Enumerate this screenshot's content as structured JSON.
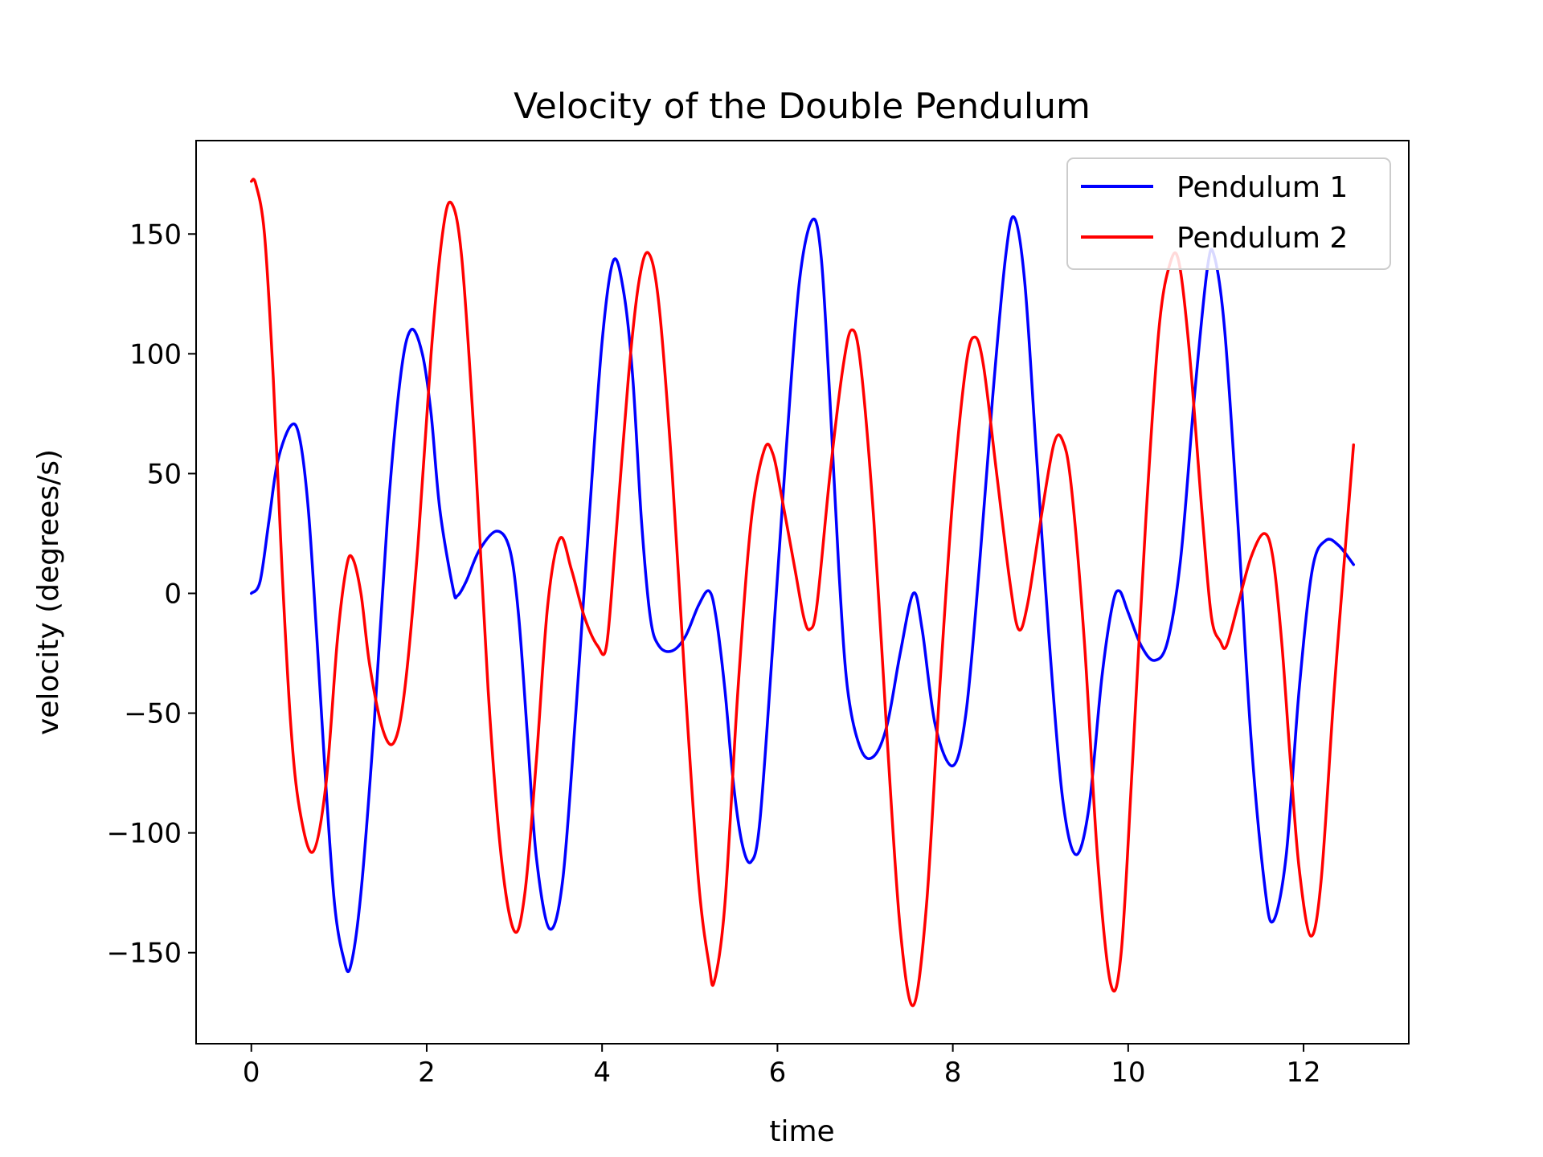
{
  "chart_data": {
    "type": "line",
    "title": "Velocity of the Double Pendulum",
    "xlabel": "time",
    "ylabel": "velocity (degrees/s)",
    "xlim": [
      -0.63,
      13.2
    ],
    "ylim": [
      -188,
      189
    ],
    "xticks": [
      0,
      2,
      4,
      6,
      8,
      10,
      12
    ],
    "yticks": [
      150,
      100,
      50,
      0,
      -50,
      -100,
      -150
    ],
    "xtick_labels": [
      "0",
      "2",
      "4",
      "6",
      "8",
      "10",
      "12"
    ],
    "ytick_labels": [
      "150",
      "100",
      "50",
      "0",
      "−50",
      "−100",
      "−150"
    ],
    "grid": false,
    "legend_position": "top-right",
    "series": [
      {
        "name": "Pendulum 1",
        "color": "#0000ff",
        "points": [
          [
            0,
            0
          ],
          [
            0.1,
            5
          ],
          [
            0.2,
            30
          ],
          [
            0.3,
            55
          ],
          [
            0.45,
            70
          ],
          [
            0.55,
            65
          ],
          [
            0.65,
            35
          ],
          [
            0.75,
            -20
          ],
          [
            0.85,
            -80
          ],
          [
            0.95,
            -130
          ],
          [
            1.05,
            -152
          ],
          [
            1.13,
            -156
          ],
          [
            1.25,
            -125
          ],
          [
            1.4,
            -55
          ],
          [
            1.55,
            30
          ],
          [
            1.7,
            90
          ],
          [
            1.82,
            110
          ],
          [
            1.95,
            100
          ],
          [
            2.05,
            75
          ],
          [
            2.15,
            35
          ],
          [
            2.3,
            2
          ],
          [
            2.35,
            -1
          ],
          [
            2.45,
            5
          ],
          [
            2.6,
            18
          ],
          [
            2.8,
            26
          ],
          [
            2.95,
            18
          ],
          [
            3.05,
            -10
          ],
          [
            3.15,
            -60
          ],
          [
            3.25,
            -110
          ],
          [
            3.4,
            -140
          ],
          [
            3.55,
            -120
          ],
          [
            3.7,
            -50
          ],
          [
            3.85,
            30
          ],
          [
            4.0,
            105
          ],
          [
            4.13,
            139
          ],
          [
            4.25,
            125
          ],
          [
            4.35,
            90
          ],
          [
            4.45,
            30
          ],
          [
            4.55,
            -10
          ],
          [
            4.65,
            -22
          ],
          [
            4.8,
            -24
          ],
          [
            4.95,
            -18
          ],
          [
            5.1,
            -5
          ],
          [
            5.22,
            1
          ],
          [
            5.3,
            -10
          ],
          [
            5.4,
            -40
          ],
          [
            5.5,
            -80
          ],
          [
            5.6,
            -105
          ],
          [
            5.7,
            -112
          ],
          [
            5.8,
            -95
          ],
          [
            5.95,
            -20
          ],
          [
            6.1,
            60
          ],
          [
            6.25,
            130
          ],
          [
            6.4,
            156
          ],
          [
            6.5,
            140
          ],
          [
            6.6,
            80
          ],
          [
            6.7,
            10
          ],
          [
            6.8,
            -40
          ],
          [
            6.95,
            -65
          ],
          [
            7.1,
            -68
          ],
          [
            7.25,
            -55
          ],
          [
            7.4,
            -25
          ],
          [
            7.55,
            0
          ],
          [
            7.65,
            -15
          ],
          [
            7.8,
            -55
          ],
          [
            8.0,
            -72
          ],
          [
            8.15,
            -50
          ],
          [
            8.3,
            10
          ],
          [
            8.45,
            80
          ],
          [
            8.6,
            140
          ],
          [
            8.7,
            157
          ],
          [
            8.82,
            130
          ],
          [
            8.95,
            60
          ],
          [
            9.1,
            -20
          ],
          [
            9.25,
            -85
          ],
          [
            9.4,
            -109
          ],
          [
            9.55,
            -90
          ],
          [
            9.7,
            -35
          ],
          [
            9.82,
            -5
          ],
          [
            9.9,
            1
          ],
          [
            10.0,
            -8
          ],
          [
            10.15,
            -22
          ],
          [
            10.3,
            -28
          ],
          [
            10.45,
            -20
          ],
          [
            10.6,
            15
          ],
          [
            10.75,
            80
          ],
          [
            10.9,
            135
          ],
          [
            10.98,
            141
          ],
          [
            11.1,
            110
          ],
          [
            11.25,
            30
          ],
          [
            11.4,
            -60
          ],
          [
            11.55,
            -120
          ],
          [
            11.65,
            -137
          ],
          [
            11.8,
            -110
          ],
          [
            11.95,
            -40
          ],
          [
            12.1,
            10
          ],
          [
            12.25,
            22
          ],
          [
            12.4,
            20
          ],
          [
            12.57,
            12
          ]
        ]
      },
      {
        "name": "Pendulum 2",
        "color": "#ff0000",
        "points": [
          [
            0,
            172
          ],
          [
            0.05,
            171
          ],
          [
            0.15,
            150
          ],
          [
            0.25,
            90
          ],
          [
            0.35,
            10
          ],
          [
            0.45,
            -55
          ],
          [
            0.55,
            -90
          ],
          [
            0.7,
            -108
          ],
          [
            0.85,
            -80
          ],
          [
            0.98,
            -20
          ],
          [
            1.08,
            10
          ],
          [
            1.15,
            15
          ],
          [
            1.25,
            0
          ],
          [
            1.35,
            -30
          ],
          [
            1.5,
            -57
          ],
          [
            1.63,
            -62
          ],
          [
            1.75,
            -40
          ],
          [
            1.9,
            20
          ],
          [
            2.05,
            100
          ],
          [
            2.18,
            150
          ],
          [
            2.28,
            163
          ],
          [
            2.4,
            140
          ],
          [
            2.55,
            60
          ],
          [
            2.7,
            -40
          ],
          [
            2.85,
            -110
          ],
          [
            3.0,
            -141
          ],
          [
            3.12,
            -125
          ],
          [
            3.25,
            -70
          ],
          [
            3.38,
            -5
          ],
          [
            3.52,
            23
          ],
          [
            3.65,
            10
          ],
          [
            3.8,
            -10
          ],
          [
            3.95,
            -22
          ],
          [
            4.05,
            -22
          ],
          [
            4.15,
            20
          ],
          [
            4.3,
            90
          ],
          [
            4.42,
            130
          ],
          [
            4.53,
            142
          ],
          [
            4.65,
            120
          ],
          [
            4.8,
            50
          ],
          [
            4.95,
            -40
          ],
          [
            5.1,
            -120
          ],
          [
            5.22,
            -155
          ],
          [
            5.28,
            -162
          ],
          [
            5.4,
            -130
          ],
          [
            5.55,
            -40
          ],
          [
            5.7,
            30
          ],
          [
            5.85,
            60
          ],
          [
            5.95,
            58
          ],
          [
            6.05,
            40
          ],
          [
            6.2,
            10
          ],
          [
            6.3,
            -10
          ],
          [
            6.37,
            -15
          ],
          [
            6.45,
            -5
          ],
          [
            6.6,
            50
          ],
          [
            6.75,
            95
          ],
          [
            6.85,
            110
          ],
          [
            6.95,
            95
          ],
          [
            7.1,
            30
          ],
          [
            7.25,
            -60
          ],
          [
            7.4,
            -140
          ],
          [
            7.55,
            -172
          ],
          [
            7.7,
            -130
          ],
          [
            7.85,
            -40
          ],
          [
            8.0,
            40
          ],
          [
            8.15,
            95
          ],
          [
            8.25,
            107
          ],
          [
            8.35,
            95
          ],
          [
            8.5,
            50
          ],
          [
            8.65,
            5
          ],
          [
            8.75,
            -15
          ],
          [
            8.85,
            -5
          ],
          [
            9.0,
            30
          ],
          [
            9.15,
            62
          ],
          [
            9.25,
            64
          ],
          [
            9.35,
            45
          ],
          [
            9.5,
            -20
          ],
          [
            9.65,
            -110
          ],
          [
            9.8,
            -163
          ],
          [
            9.92,
            -150
          ],
          [
            10.05,
            -70
          ],
          [
            10.2,
            30
          ],
          [
            10.35,
            110
          ],
          [
            10.48,
            138
          ],
          [
            10.58,
            138
          ],
          [
            10.7,
            100
          ],
          [
            10.85,
            30
          ],
          [
            10.95,
            -10
          ],
          [
            11.05,
            -20
          ],
          [
            11.12,
            -22
          ],
          [
            11.25,
            -5
          ],
          [
            11.4,
            15
          ],
          [
            11.55,
            25
          ],
          [
            11.65,
            15
          ],
          [
            11.75,
            -20
          ],
          [
            11.85,
            -70
          ],
          [
            11.95,
            -115
          ],
          [
            12.08,
            -143
          ],
          [
            12.2,
            -120
          ],
          [
            12.35,
            -40
          ],
          [
            12.5,
            30
          ],
          [
            12.57,
            62
          ]
        ]
      }
    ]
  }
}
